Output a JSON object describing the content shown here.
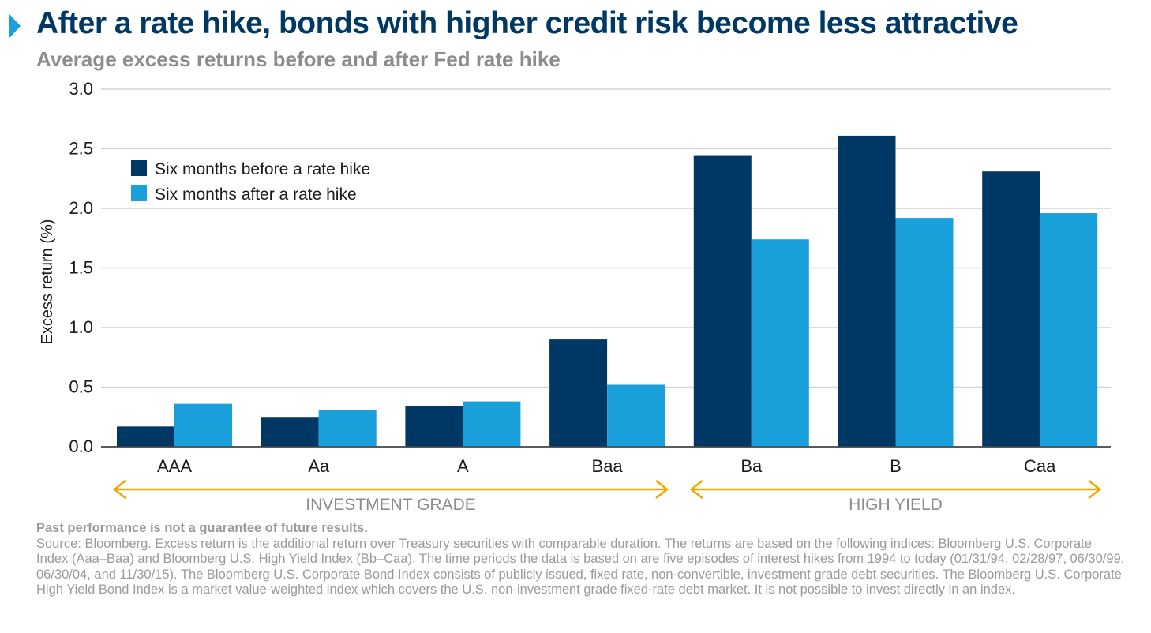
{
  "header": {
    "title": "After a rate hike, bonds with higher credit risk become less attractive",
    "subtitle": "Average excess returns before and after Fed rate hike"
  },
  "chart_data": {
    "type": "bar",
    "categories": [
      "AAA",
      "Aa",
      "A",
      "Baa",
      "Ba",
      "B",
      "Caa"
    ],
    "series": [
      {
        "name": "Six months before a rate hike",
        "color": "#003865",
        "values": [
          0.17,
          0.25,
          0.34,
          0.9,
          2.44,
          2.61,
          2.31
        ]
      },
      {
        "name": "Six months after a rate hike",
        "color": "#1aa0db",
        "values": [
          0.36,
          0.31,
          0.38,
          0.52,
          1.74,
          1.92,
          1.96
        ]
      }
    ],
    "xlabel": "",
    "ylabel": "Excess return (%)",
    "ylim": [
      0,
      3.0
    ],
    "yticks": [
      "0.0",
      "0.5",
      "1.0",
      "1.5",
      "2.0",
      "2.5",
      "3.0"
    ],
    "grid": true,
    "legend_position": "top-left",
    "groups": [
      {
        "label": "INVESTMENT GRADE",
        "categories": [
          "AAA",
          "Aa",
          "A",
          "Baa"
        ]
      },
      {
        "label": "HIGH YIELD",
        "categories": [
          "Ba",
          "B",
          "Caa"
        ]
      }
    ],
    "group_arrow_color": "#f0a800"
  },
  "footnote": {
    "disclaimer": "Past performance is not a guarantee of future results.",
    "source": "Source: Bloomberg. Excess return is the additional return over Treasury securities with comparable duration. The returns are based on the following indices: Bloomberg U.S. Corporate Index (Aaa–Baa) and Bloomberg U.S. High Yield Index (Bb–Caa). The time periods the data is based on are five episodes of interest hikes from 1994 to today (01/31/94, 02/28/97, 06/30/99, 06/30/04, and 11/30/15). The Bloomberg U.S. Corporate Bond Index consists of publicly issued, fixed rate, non-convertible, investment grade debt securities. The Bloomberg U.S. Corporate High Yield Bond Index is a market value-weighted index which covers the U.S. non-investment grade fixed-rate debt market. It is not possible to invest directly in an index."
  }
}
